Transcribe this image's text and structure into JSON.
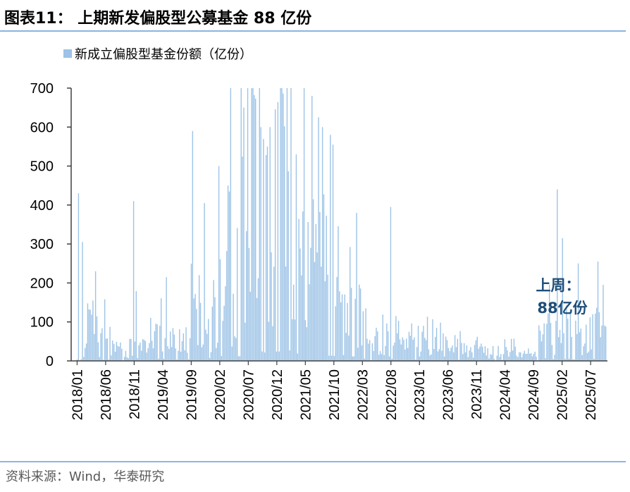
{
  "figure": {
    "title": "图表11： 上期新发偏股型公募基金 88 亿份",
    "source": "资料来源：Wind，华泰研究"
  },
  "colors": {
    "bar": "#9DC3E6",
    "annotation": "#1F4E79",
    "rule": "#8DB3E2"
  },
  "chart_data": {
    "type": "bar",
    "series": [
      {
        "name": "新成立偏股型基金份额（亿份）"
      }
    ],
    "ylim": [
      0,
      700
    ],
    "yticks": [
      0,
      100,
      200,
      300,
      400,
      500,
      600,
      700
    ],
    "grid": false,
    "legend": "top-left",
    "x_start": "2018/01",
    "x_end": "2025/09",
    "xticks": [
      "2018/01",
      "2018/06",
      "2018/11",
      "2019/04",
      "2019/09",
      "2020/02",
      "2020/07",
      "2020/12",
      "2021/05",
      "2021/10",
      "2022/03",
      "2022/08",
      "2023/01",
      "2023/06",
      "2023/11",
      "2024/04",
      "2024/09",
      "2025/02",
      "2025/07"
    ],
    "annotation": {
      "lines": [
        "上周：",
        "88亿份"
      ],
      "value": 88
    },
    "anchors": [
      [
        "2018/01",
        20
      ],
      [
        "2018/02",
        200
      ],
      [
        "2018/03",
        110
      ],
      [
        "2018/04",
        90
      ],
      [
        "2018/05",
        60
      ],
      [
        "2018/06",
        70
      ],
      [
        "2018/07",
        40
      ],
      [
        "2018/08",
        35
      ],
      [
        "2018/09",
        30
      ],
      [
        "2018/10",
        40
      ],
      [
        "2018/11",
        150
      ],
      [
        "2018/12",
        40
      ],
      [
        "2019/01",
        40
      ],
      [
        "2019/02",
        80
      ],
      [
        "2019/03",
        120
      ],
      [
        "2019/04",
        110
      ],
      [
        "2019/05",
        70
      ],
      [
        "2019/06",
        70
      ],
      [
        "2019/07",
        70
      ],
      [
        "2019/08",
        80
      ],
      [
        "2019/09",
        200
      ],
      [
        "2019/10",
        130
      ],
      [
        "2019/11",
        130
      ],
      [
        "2019/12",
        150
      ],
      [
        "2020/01",
        220
      ],
      [
        "2020/02",
        250
      ],
      [
        "2020/03",
        330
      ],
      [
        "2020/04",
        200
      ],
      [
        "2020/05",
        240
      ],
      [
        "2020/06",
        420
      ],
      [
        "2020/07",
        560
      ],
      [
        "2020/08",
        500
      ],
      [
        "2020/09",
        480
      ],
      [
        "2020/10",
        430
      ],
      [
        "2020/11",
        450
      ],
      [
        "2020/12",
        480
      ],
      [
        "2021/01",
        560
      ],
      [
        "2021/02",
        540
      ],
      [
        "2021/03",
        380
      ],
      [
        "2021/04",
        330
      ],
      [
        "2021/05",
        360
      ],
      [
        "2021/06",
        420
      ],
      [
        "2021/07",
        350
      ],
      [
        "2021/08",
        340
      ],
      [
        "2021/09",
        270
      ],
      [
        "2021/10",
        250
      ],
      [
        "2021/11",
        300
      ],
      [
        "2021/12",
        200
      ],
      [
        "2022/01",
        230
      ],
      [
        "2022/02",
        140
      ],
      [
        "2022/03",
        120
      ],
      [
        "2022/04",
        40
      ],
      [
        "2022/05",
        60
      ],
      [
        "2022/06",
        90
      ],
      [
        "2022/07",
        70
      ],
      [
        "2022/08",
        110
      ],
      [
        "2022/09",
        90
      ],
      [
        "2022/10",
        60
      ],
      [
        "2022/11",
        80
      ],
      [
        "2022/12",
        70
      ],
      [
        "2023/01",
        70
      ],
      [
        "2023/02",
        100
      ],
      [
        "2023/03",
        80
      ],
      [
        "2023/04",
        70
      ],
      [
        "2023/05",
        60
      ],
      [
        "2023/06",
        70
      ],
      [
        "2023/07",
        60
      ],
      [
        "2023/08",
        60
      ],
      [
        "2023/09",
        60
      ],
      [
        "2023/10",
        40
      ],
      [
        "2023/11",
        50
      ],
      [
        "2023/12",
        50
      ],
      [
        "2024/01",
        40
      ],
      [
        "2024/02",
        30
      ],
      [
        "2024/03",
        50
      ],
      [
        "2024/04",
        40
      ],
      [
        "2024/05",
        40
      ],
      [
        "2024/06",
        30
      ],
      [
        "2024/07",
        30
      ],
      [
        "2024/08",
        25
      ],
      [
        "2024/09",
        20
      ],
      [
        "2024/10",
        80
      ],
      [
        "2024/11",
        140
      ],
      [
        "2024/12",
        90
      ],
      [
        "2025/01",
        80
      ],
      [
        "2025/02",
        100
      ],
      [
        "2025/03",
        110
      ],
      [
        "2025/04",
        80
      ],
      [
        "2025/05",
        90
      ],
      [
        "2025/06",
        90
      ],
      [
        "2025/07",
        110
      ],
      [
        "2025/08",
        120
      ],
      [
        "2025/09",
        100
      ]
    ],
    "spikes": [
      [
        "2018/01",
        430
      ],
      [
        "2018/02",
        305
      ],
      [
        "2018/04",
        230
      ],
      [
        "2018/06",
        158
      ],
      [
        "2018/11",
        410
      ],
      [
        "2019/04",
        215
      ],
      [
        "2019/09",
        590
      ],
      [
        "2019/10",
        220
      ],
      [
        "2019/11",
        405
      ],
      [
        "2020/02",
        500
      ],
      [
        "2020/03",
        450
      ],
      [
        "2020/04",
        700
      ],
      [
        "2020/05",
        700
      ],
      [
        "2020/06",
        650
      ],
      [
        "2020/07",
        700
      ],
      [
        "2020/08",
        700
      ],
      [
        "2020/09",
        700
      ],
      [
        "2020/10",
        550
      ],
      [
        "2020/11",
        600
      ],
      [
        "2020/12",
        700
      ],
      [
        "2021/01",
        700
      ],
      [
        "2021/02",
        700
      ],
      [
        "2021/03",
        530
      ],
      [
        "2021/05",
        700
      ],
      [
        "2021/06",
        680
      ],
      [
        "2021/07",
        625
      ],
      [
        "2021/08",
        600
      ],
      [
        "2021/09",
        580
      ],
      [
        "2021/10",
        555
      ],
      [
        "2022/02",
        380
      ],
      [
        "2022/08",
        395
      ],
      [
        "2025/01",
        440
      ],
      [
        "2025/02",
        315
      ],
      [
        "2025/05",
        250
      ],
      [
        "2025/08",
        255
      ],
      [
        "2025/09",
        195
      ]
    ]
  }
}
